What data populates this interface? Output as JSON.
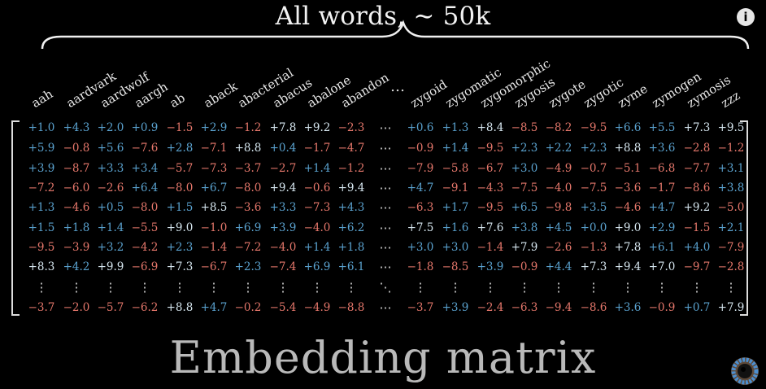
{
  "header": {
    "title": "All words,  ∼ 50k",
    "info_icon": "info-icon",
    "info_glyph": "i"
  },
  "matrix": {
    "title": "Embedding matrix",
    "words": [
      "aah",
      "aardvark",
      "aardwolf",
      "aargh",
      "ab",
      "aback",
      "abacterial",
      "abacus",
      "abalone",
      "abandon",
      "zygoid",
      "zygomatic",
      "zygomorphic",
      "zygosis",
      "zygote",
      "zygotic",
      "zyme",
      "zymogen",
      "zymosis",
      "zzz"
    ],
    "rows": [
      [
        1.0,
        4.3,
        2.0,
        0.9,
        -1.5,
        2.9,
        -1.2,
        7.8,
        9.2,
        -2.3,
        0.6,
        1.3,
        8.4,
        -8.5,
        -8.2,
        -9.5,
        6.6,
        5.5,
        7.3,
        9.5
      ],
      [
        5.9,
        -0.8,
        5.6,
        -7.6,
        2.8,
        -7.1,
        8.8,
        0.4,
        -1.7,
        -4.7,
        -0.9,
        1.4,
        -9.5,
        2.3,
        2.2,
        2.3,
        8.8,
        3.6,
        -2.8,
        -1.2
      ],
      [
        3.9,
        -8.7,
        3.3,
        3.4,
        -5.7,
        -7.3,
        -3.7,
        -2.7,
        1.4,
        -1.2,
        -7.9,
        -5.8,
        -6.7,
        3.0,
        -4.9,
        -0.7,
        -5.1,
        -6.8,
        -7.7,
        3.1
      ],
      [
        -7.2,
        -6.0,
        -2.6,
        6.4,
        -8.0,
        6.7,
        -8.0,
        9.4,
        -0.6,
        9.4,
        4.7,
        -9.1,
        -4.3,
        -7.5,
        -4.0,
        -7.5,
        -3.6,
        -1.7,
        -8.6,
        3.8
      ],
      [
        1.3,
        -4.6,
        0.5,
        -8.0,
        1.5,
        8.5,
        -3.6,
        3.3,
        -7.3,
        4.3,
        -6.3,
        1.7,
        -9.5,
        6.5,
        -9.8,
        3.5,
        -4.6,
        4.7,
        9.2,
        -5.0
      ],
      [
        1.5,
        1.8,
        1.4,
        -5.5,
        9.0,
        -1.0,
        6.9,
        3.9,
        -4.0,
        6.2,
        7.5,
        1.6,
        7.6,
        3.8,
        4.5,
        0.0,
        9.0,
        2.9,
        -1.5,
        2.1
      ],
      [
        -9.5,
        -3.9,
        3.2,
        -4.2,
        2.3,
        -1.4,
        -7.2,
        -4.0,
        1.4,
        1.8,
        3.0,
        3.0,
        -1.4,
        7.9,
        -2.6,
        -1.3,
        7.8,
        6.1,
        4.0,
        -7.9
      ],
      [
        8.3,
        4.2,
        9.9,
        -6.9,
        7.3,
        -6.7,
        2.3,
        -7.4,
        6.9,
        6.1,
        -1.8,
        -8.5,
        3.9,
        -0.9,
        4.4,
        7.3,
        9.4,
        7.0,
        -9.7,
        -2.8
      ],
      [
        -3.7,
        -2.0,
        -5.7,
        -6.2,
        8.8,
        4.7,
        -0.2,
        -5.4,
        -4.9,
        -8.8,
        -3.7,
        3.9,
        -2.4,
        -6.3,
        -9.4,
        -8.6,
        3.6,
        -0.9,
        0.7,
        7.9
      ]
    ],
    "ellipsis_h": "⋯",
    "ellipsis_v": "⋮",
    "ellipsis_d": "⋱",
    "header_ellipsis": "…"
  },
  "colors": {
    "positive_strong": "#5aa2cf",
    "positive_light": "#d6e6ef",
    "negative": "#e5776b",
    "background": "#000000"
  },
  "logo_icon": "3b1b-pi-logo-icon"
}
